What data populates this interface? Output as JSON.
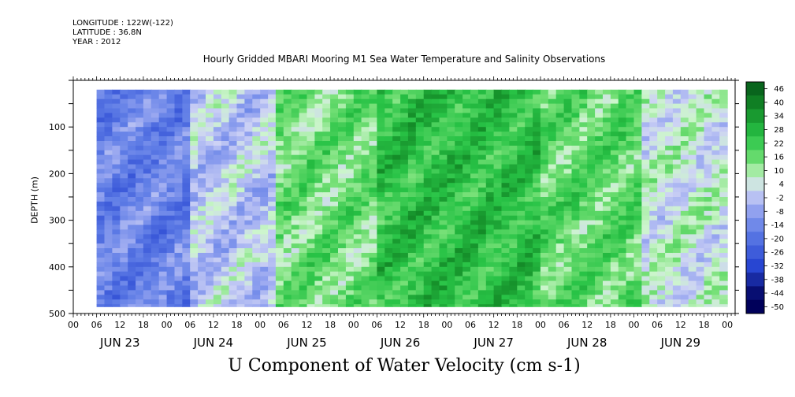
{
  "meta": {
    "longitude": "LONGITUDE : 122W(-122)",
    "latitude": "LATITUDE : 36.8N",
    "year": "YEAR : 2012"
  },
  "chart_data": {
    "type": "heatmap",
    "title": "Hourly Gridded MBARI Mooring M1 Sea Water Temperature and Salinity Observations",
    "xlabel": "U Component of Water Velocity (cm s-1)",
    "ylabel": "DEPTH (m)",
    "y_axis": {
      "range": [
        500,
        0
      ],
      "ticks": [
        100,
        200,
        300,
        400,
        500
      ],
      "inverted": true
    },
    "x_axis": {
      "unit": "hours",
      "range": [
        0,
        170
      ],
      "hour_ticks": [
        "00",
        "06",
        "12",
        "18"
      ],
      "days": [
        "JUN 23",
        "JUN 24",
        "JUN 25",
        "JUN 26",
        "JUN 27",
        "JUN 28",
        "JUN 29"
      ]
    },
    "colorbar": {
      "levels": [
        46,
        40,
        34,
        28,
        22,
        16,
        10,
        4,
        -2,
        -8,
        -14,
        -20,
        -26,
        -32,
        -38,
        -44,
        -50
      ],
      "min": -50,
      "max": 50
    },
    "data_extent": {
      "hour_start": 6,
      "hour_end": 168,
      "depth_top": 20,
      "depth_bottom": 485
    },
    "pattern": [
      {
        "hour_start": 6,
        "hour_end": 30,
        "mean_velocity": -18
      },
      {
        "hour_start": 30,
        "hour_end": 52,
        "mean_velocity": -4
      },
      {
        "hour_start": 52,
        "hour_end": 78,
        "mean_velocity": 12
      },
      {
        "hour_start": 78,
        "hour_end": 120,
        "mean_velocity": 22
      },
      {
        "hour_start": 120,
        "hour_end": 145,
        "mean_velocity": 14
      },
      {
        "hour_start": 145,
        "hour_end": 168,
        "mean_velocity": 2
      }
    ]
  }
}
